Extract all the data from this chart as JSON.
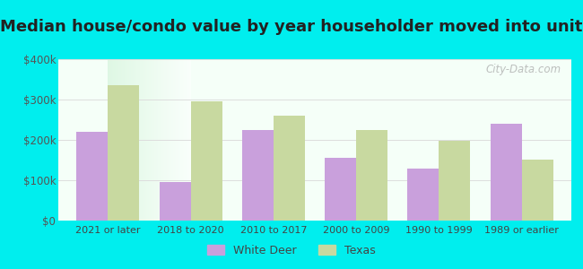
{
  "title": "Median house/condo value by year householder moved into unit",
  "categories": [
    "2021 or later",
    "2018 to 2020",
    "2010 to 2017",
    "2000 to 2009",
    "1990 to 1999",
    "1989 or earlier"
  ],
  "white_deer": [
    220000,
    95000,
    225000,
    155000,
    130000,
    240000
  ],
  "texas": [
    335000,
    295000,
    260000,
    225000,
    198000,
    152000
  ],
  "white_deer_color": "#c9a0dc",
  "texas_color": "#c8d9a0",
  "background_color": "#00eeee",
  "plot_bg": "#edfff0",
  "ylim": [
    0,
    400000
  ],
  "yticks": [
    0,
    100000,
    200000,
    300000,
    400000
  ],
  "ytick_labels": [
    "$0",
    "$100k",
    "$200k",
    "$300k",
    "$400k"
  ],
  "watermark": "City-Data.com",
  "legend_labels": [
    "White Deer",
    "Texas"
  ],
  "bar_width": 0.38,
  "title_fontsize": 13,
  "title_color": "#222222"
}
